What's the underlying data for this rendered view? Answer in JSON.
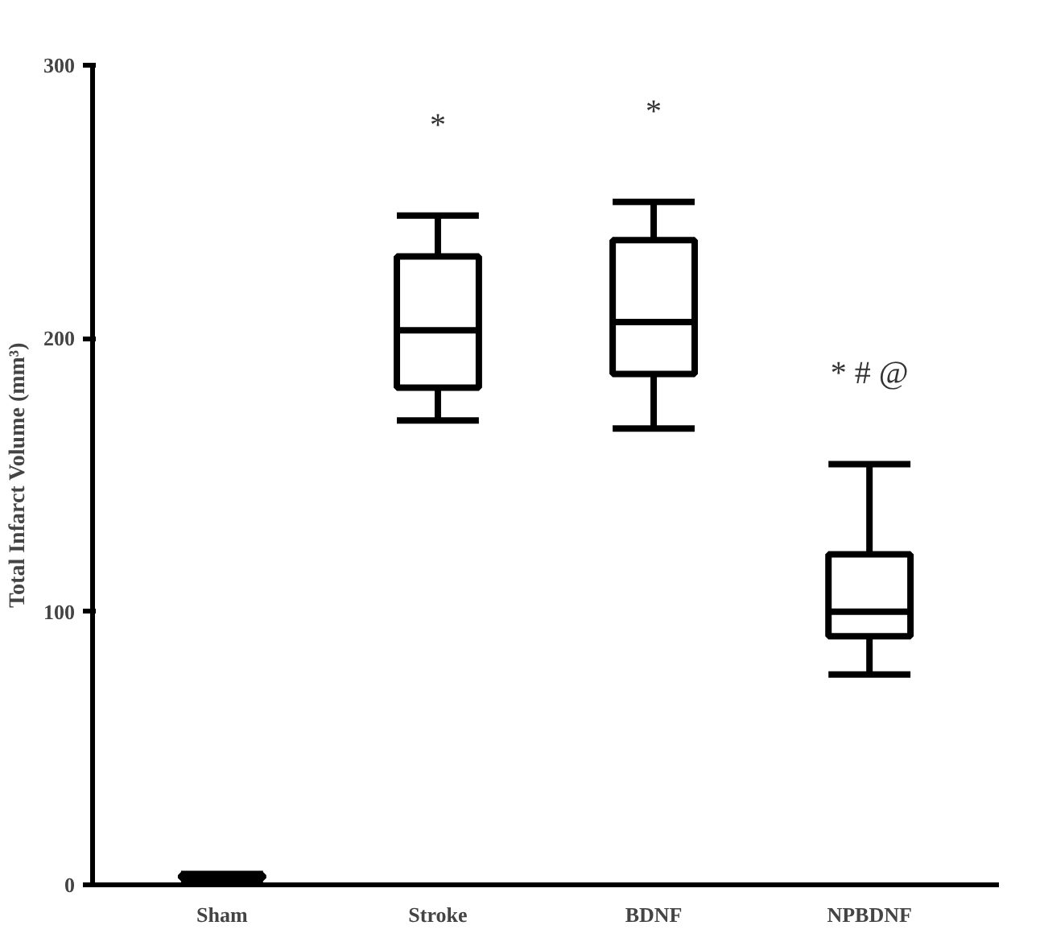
{
  "chart_data": {
    "type": "box",
    "ylabel": "Total Infarct Volume (mm³)",
    "categories": [
      "Sham",
      "Stroke",
      "BDNF",
      "NPBDNF"
    ],
    "boxes": [
      {
        "low": 2,
        "q1": 2.5,
        "median": 3,
        "q3": 3.5,
        "high": 4
      },
      {
        "low": 170,
        "q1": 182,
        "median": 203,
        "q3": 230,
        "high": 245
      },
      {
        "low": 167,
        "q1": 187,
        "median": 206,
        "q3": 236,
        "high": 250
      },
      {
        "low": 77,
        "q1": 91,
        "median": 100,
        "q3": 121,
        "high": 154
      }
    ],
    "color": "#000000",
    "ylim": [
      0,
      300
    ],
    "yticks": [
      0,
      100,
      200,
      300
    ],
    "grid": false,
    "annotations": [
      "*",
      "*",
      "* # @"
    ]
  }
}
